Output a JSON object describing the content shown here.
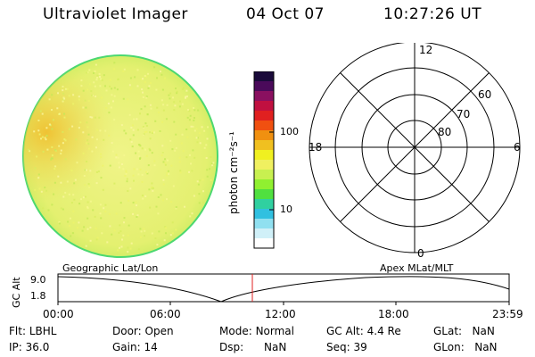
{
  "header": {
    "instrument": "Ultraviolet Imager",
    "date": "04 Oct 07",
    "time": "10:27:26 UT"
  },
  "colorbar": {
    "unit_label": "photon cm⁻²s⁻¹",
    "ticks": [
      "100",
      "10"
    ],
    "colors": [
      "#1a0a3a",
      "#4a0a5a",
      "#8a1060",
      "#c01040",
      "#e02020",
      "#f05010",
      "#f09010",
      "#f0c020",
      "#f0f020",
      "#f0f060",
      "#c8f050",
      "#90f030",
      "#50e040",
      "#30d0a0",
      "#30c0e0",
      "#90e0f0",
      "#d0f0f8",
      "#ffffff"
    ]
  },
  "uv_image": {
    "disk_color": "#e8f078",
    "rim_color": "#4cd870",
    "hotspot_color": "#f0c030"
  },
  "polar_grid": {
    "mlt_labels": {
      "top": "12",
      "right": "6",
      "bottom": "0",
      "left": "18"
    },
    "lat_labels": [
      "60",
      "70",
      "80"
    ]
  },
  "timeline": {
    "y_label": "GC Alt",
    "y_ticks": [
      "9.0",
      "1.8"
    ],
    "left_title": "Geographic Lat/Lon",
    "right_title": "Apex  MLat/MLT",
    "x_ticks": [
      "00:00",
      "06:00",
      "12:00",
      "18:00",
      "23:59"
    ],
    "marker_color": "#e02020"
  },
  "status": [
    {
      "label": "Flt:",
      "value": "LBHL"
    },
    {
      "label": "Door:",
      "value": "Open"
    },
    {
      "label": "Mode:",
      "value": "Normal"
    },
    {
      "label": "GC Alt:",
      "value": "4.4 Re"
    },
    {
      "label": "GLat:",
      "value": "NaN"
    },
    {
      "label": "IP:",
      "value": "36.0"
    },
    {
      "label": "Gain:",
      "value": "14"
    },
    {
      "label": "Dsp:",
      "value": "NaN"
    },
    {
      "label": "Seq:",
      "value": "39"
    },
    {
      "label": "GLon:",
      "value": "NaN"
    }
  ]
}
